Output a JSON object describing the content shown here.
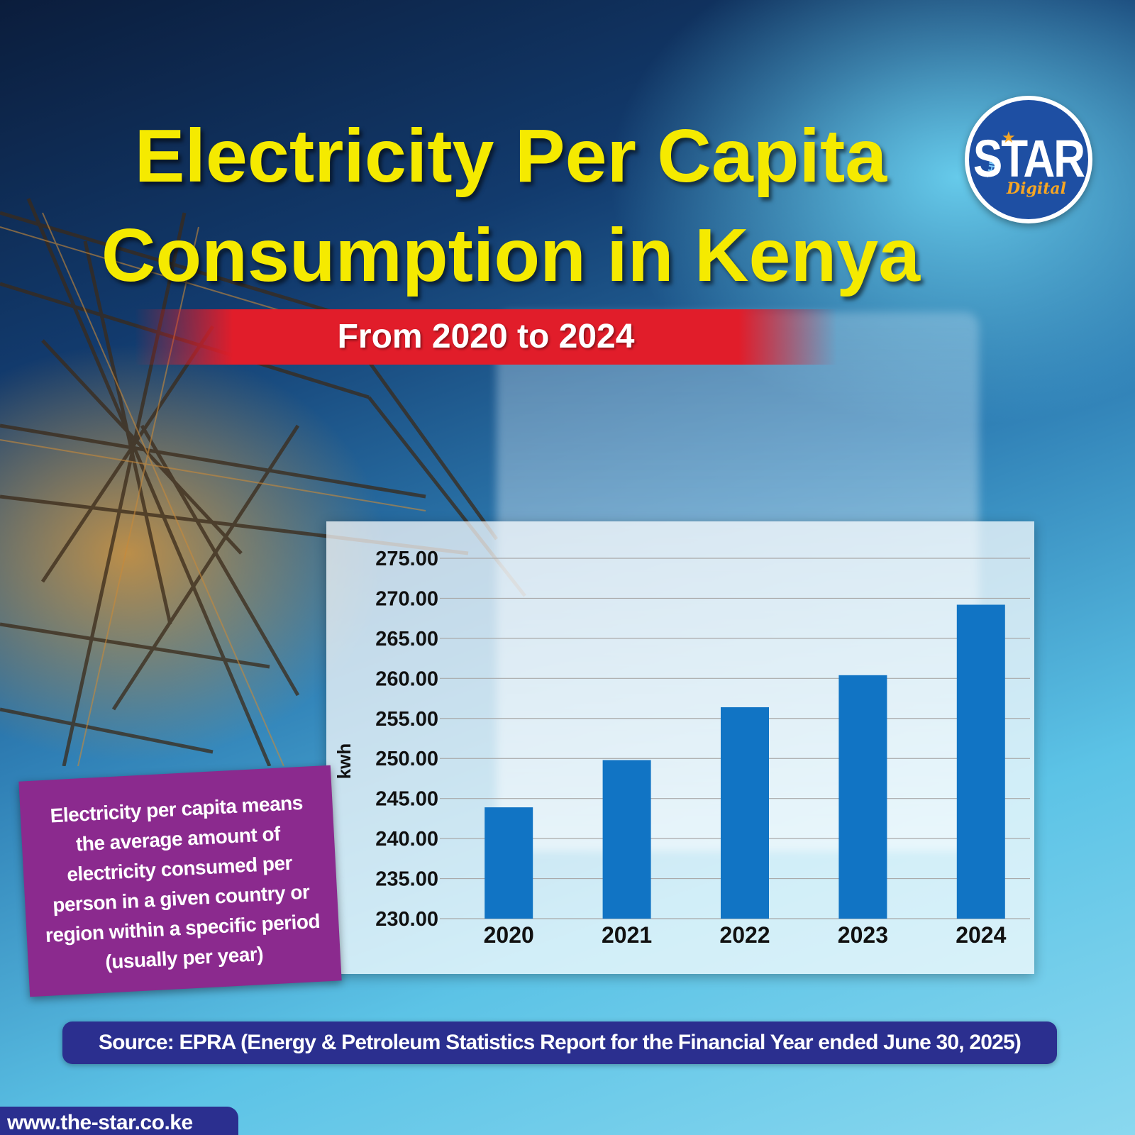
{
  "header": {
    "title_line1": "Electricity Per Capita",
    "title_line2": "Consumption in Kenya",
    "subtitle": "From 2020 to 2024"
  },
  "logo": {
    "the": "THE",
    "star": "STAR",
    "digital": "Digital"
  },
  "definition": "Electricity per capita means the average amount of electricity consumed per person in a given country or region within a specific period (usually per year)",
  "source": "Source: EPRA (Energy & Petroleum Statistics Report for the Financial Year ended June 30, 2025)",
  "website": "www.the-star.co.ke",
  "colors": {
    "title": "#f5ea00",
    "subtitle_band": "#e11d2a",
    "bar": "#1174c4",
    "definition_box": "#8b2a8e",
    "source_bar": "#2b2f8f",
    "logo": "#1e4fa3"
  },
  "chart_data": {
    "type": "bar",
    "categories": [
      "2020",
      "2021",
      "2022",
      "2023",
      "2024"
    ],
    "values": [
      243.9,
      249.8,
      256.4,
      260.4,
      269.2
    ],
    "ylabel": "kwh",
    "ylim": [
      230,
      275
    ],
    "yticks": [
      "230.00",
      "235.00",
      "240.00",
      "245.00",
      "250.00",
      "255.00",
      "260.00",
      "265.00",
      "270.00",
      "275.00"
    ],
    "grid": true,
    "legend": "none"
  }
}
